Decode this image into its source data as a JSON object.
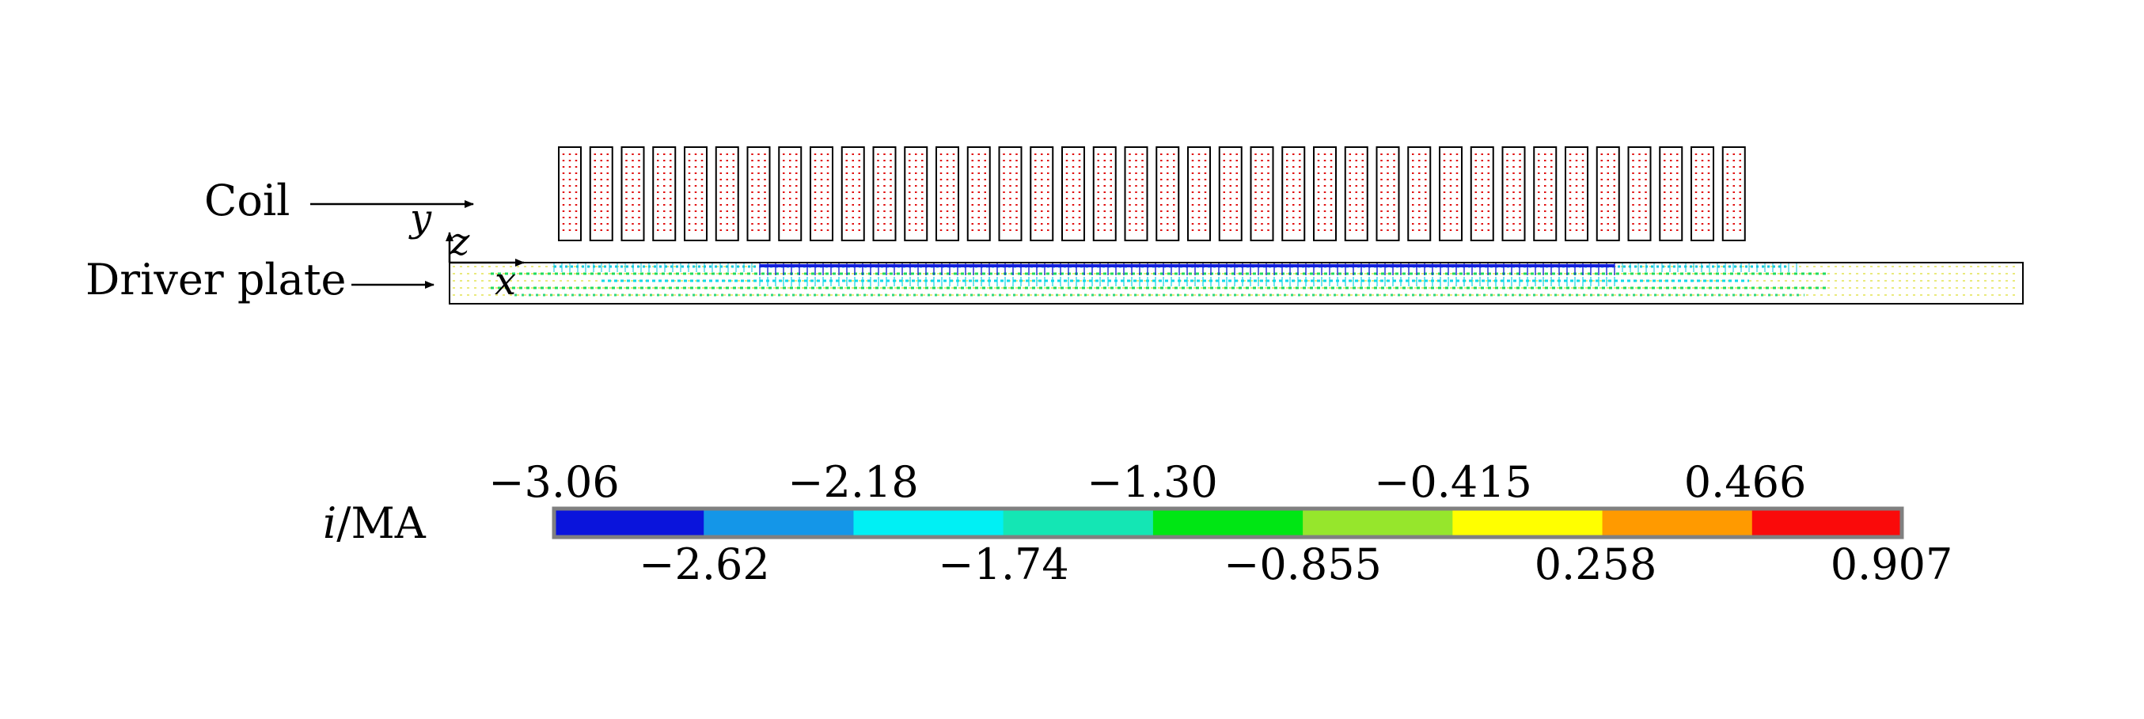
{
  "labels": {
    "coil": "Coil",
    "driver_plate": "Driver plate",
    "axis_x": "x",
    "axis_y": "y",
    "axis_z": "z"
  },
  "colorbar": {
    "quantity": "i",
    "unit": "/MA",
    "upper_ticks": [
      "−3.06",
      "−2.18",
      "−1.30",
      "−0.415",
      "0.466"
    ],
    "lower_ticks": [
      "−2.62",
      "−1.74",
      "−0.855",
      "0.258",
      "0.907"
    ],
    "colors": [
      "#0a14dc",
      "#1496e8",
      "#00f0f4",
      "#14e6b4",
      "#00e614",
      "#96e62c",
      "#ffff00",
      "#ff9a00",
      "#fa0a0a"
    ]
  },
  "coil": {
    "turn_count": 38,
    "current_color": "#e01010"
  },
  "plate_field": {
    "top_row_color": "#1420dc",
    "layer_colors": [
      "#1420dc",
      "#10d8e8",
      "#20dc60",
      "#c8ec40",
      "#e8e870"
    ],
    "edge_color": "#e8e870"
  }
}
